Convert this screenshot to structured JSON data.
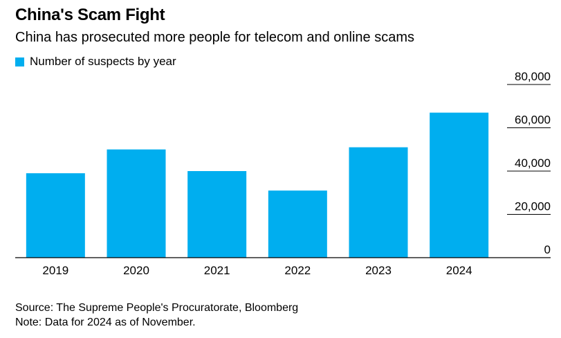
{
  "title": "China's Scam Fight",
  "subtitle": "China has prosecuted more people for telecom and online scams",
  "legend": {
    "label": "Number of suspects by year",
    "color": "#00AEEF"
  },
  "source": "Source: The Supreme People's Procuratorate, Bloomberg",
  "note": "Note: Data for 2024 as of November.",
  "chart_data": {
    "type": "bar",
    "title": "China's Scam Fight",
    "categories": [
      "2019",
      "2020",
      "2021",
      "2022",
      "2023",
      "2024"
    ],
    "series": [
      {
        "name": "Number of suspects by year",
        "values": [
          39000,
          50000,
          40000,
          31000,
          51000,
          67000
        ]
      }
    ],
    "xlabel": "",
    "ylabel": "",
    "ylim": [
      0,
      80000
    ],
    "yticks": [
      0,
      20000,
      40000,
      60000,
      80000
    ],
    "ytick_labels": [
      "0",
      "20,000",
      "40,000",
      "60,000",
      "80,000"
    ],
    "y_axis_side": "right",
    "grid": false,
    "legend_position": "top-left",
    "bar_color": "#00AEEF"
  }
}
